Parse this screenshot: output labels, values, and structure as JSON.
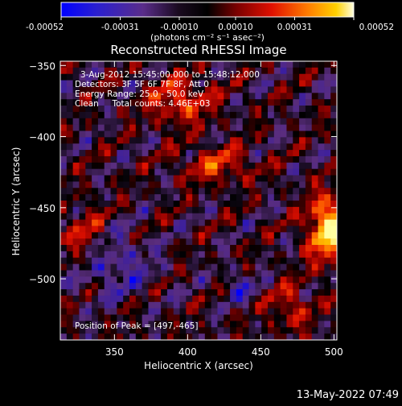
{
  "chart_data": {
    "type": "heatmap",
    "title": "Reconstructed RHESSI Image",
    "xlabel": "Heliocentric X (arcsec)",
    "ylabel": "Heliocentric Y (arcsec)",
    "xlim": [
      313,
      502
    ],
    "ylim": [
      -543,
      -347
    ],
    "xticks": [
      350,
      400,
      450,
      500
    ],
    "yticks": [
      -350,
      -400,
      -450,
      -500
    ],
    "colorbar": {
      "ticks": [
        "-0.00052",
        "-0.00031",
        "-0.00010",
        "0.00010",
        "0.00031",
        "0.00052"
      ],
      "tick_values": [
        -0.00052,
        -0.00031,
        -0.0001,
        0.0001,
        0.00031,
        0.00052
      ],
      "unit_label": "(photons cm⁻² s⁻¹ asec⁻²)",
      "range": [
        -0.00052,
        0.00052
      ]
    },
    "annotations": [
      "3-Aug-2012 15:45:00.000 to 15:48:12.000",
      "Detectors: 3F 5F 6F 7F 8F, Att 0",
      "Energy Range: 25.0 - 50.0 keV",
      "Clean     Total counts: 4.46E+03"
    ],
    "peak_label": "Position of Peak = [497,-465]",
    "peak": [
      497,
      -465
    ],
    "colormap": [
      "#0000ff",
      "#3b1fa0",
      "#5a2d7e",
      "#000000",
      "#8a0000",
      "#e01000",
      "#ff6a00",
      "#ffc000",
      "#ffffa0"
    ]
  },
  "footer": {
    "timestamp": "13-May-2022 07:49"
  }
}
